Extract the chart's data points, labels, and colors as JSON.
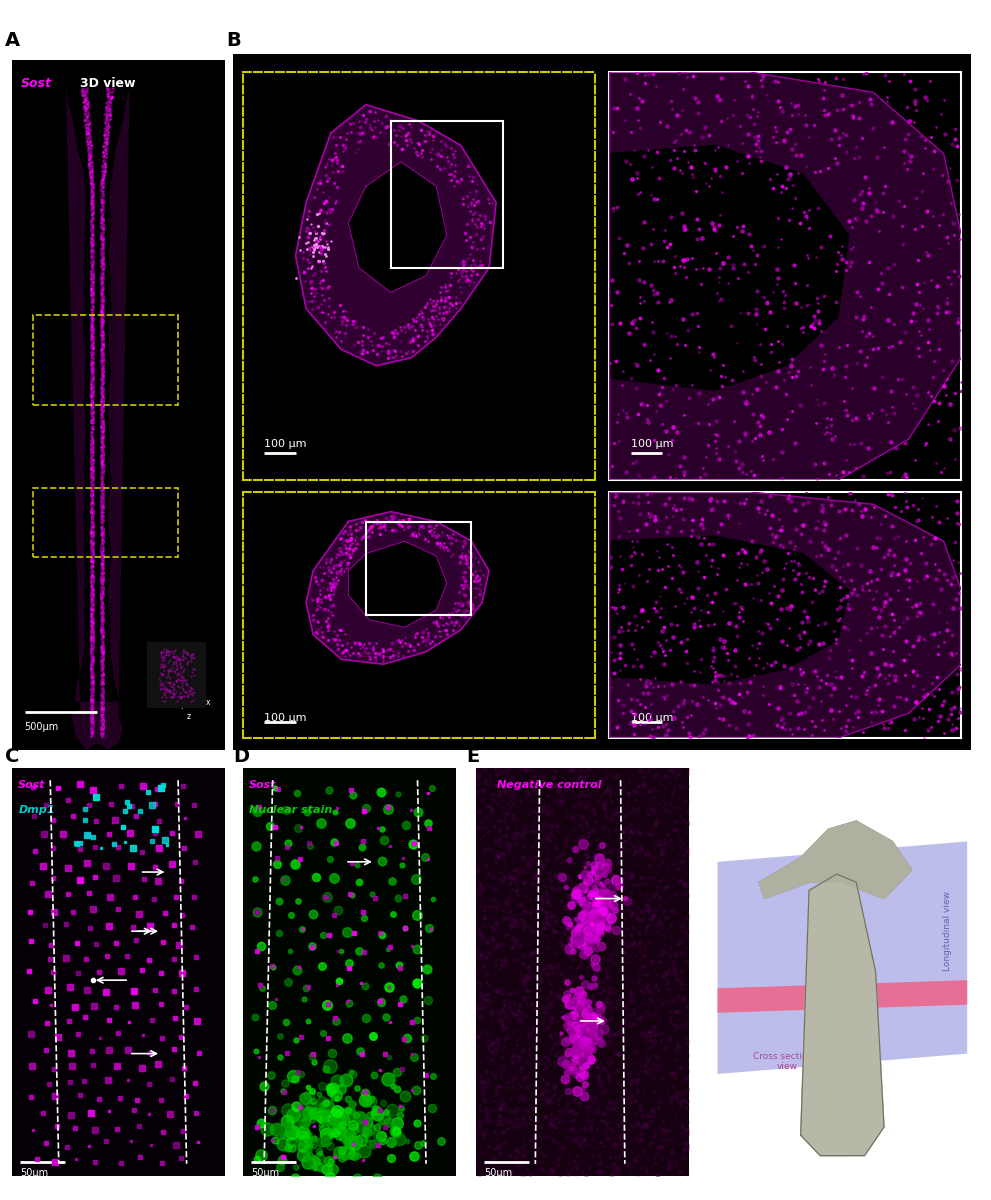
{
  "bg_color": "#000000",
  "figure_bg": "#ffffff",
  "label_color": "#000000",
  "label_fontsize": 14,
  "label_fontweight": "bold",
  "magenta": "#ff00ff",
  "magenta_dim": "#cc00cc",
  "cyan": "#00cccc",
  "green": "#00cc00",
  "white": "#ffffff",
  "yellow_dashed": "#cccc00",
  "panel_A_scalebar": "500μm",
  "panel_B_scalebar": "100 μm",
  "panel_C_scalebar": "50μm",
  "panel_D_scalebar": "50μm",
  "panel_E_scalebar": "50μm",
  "longitudinal": "Longitudinal view",
  "cross_sectional": "Cross sectional\nview"
}
